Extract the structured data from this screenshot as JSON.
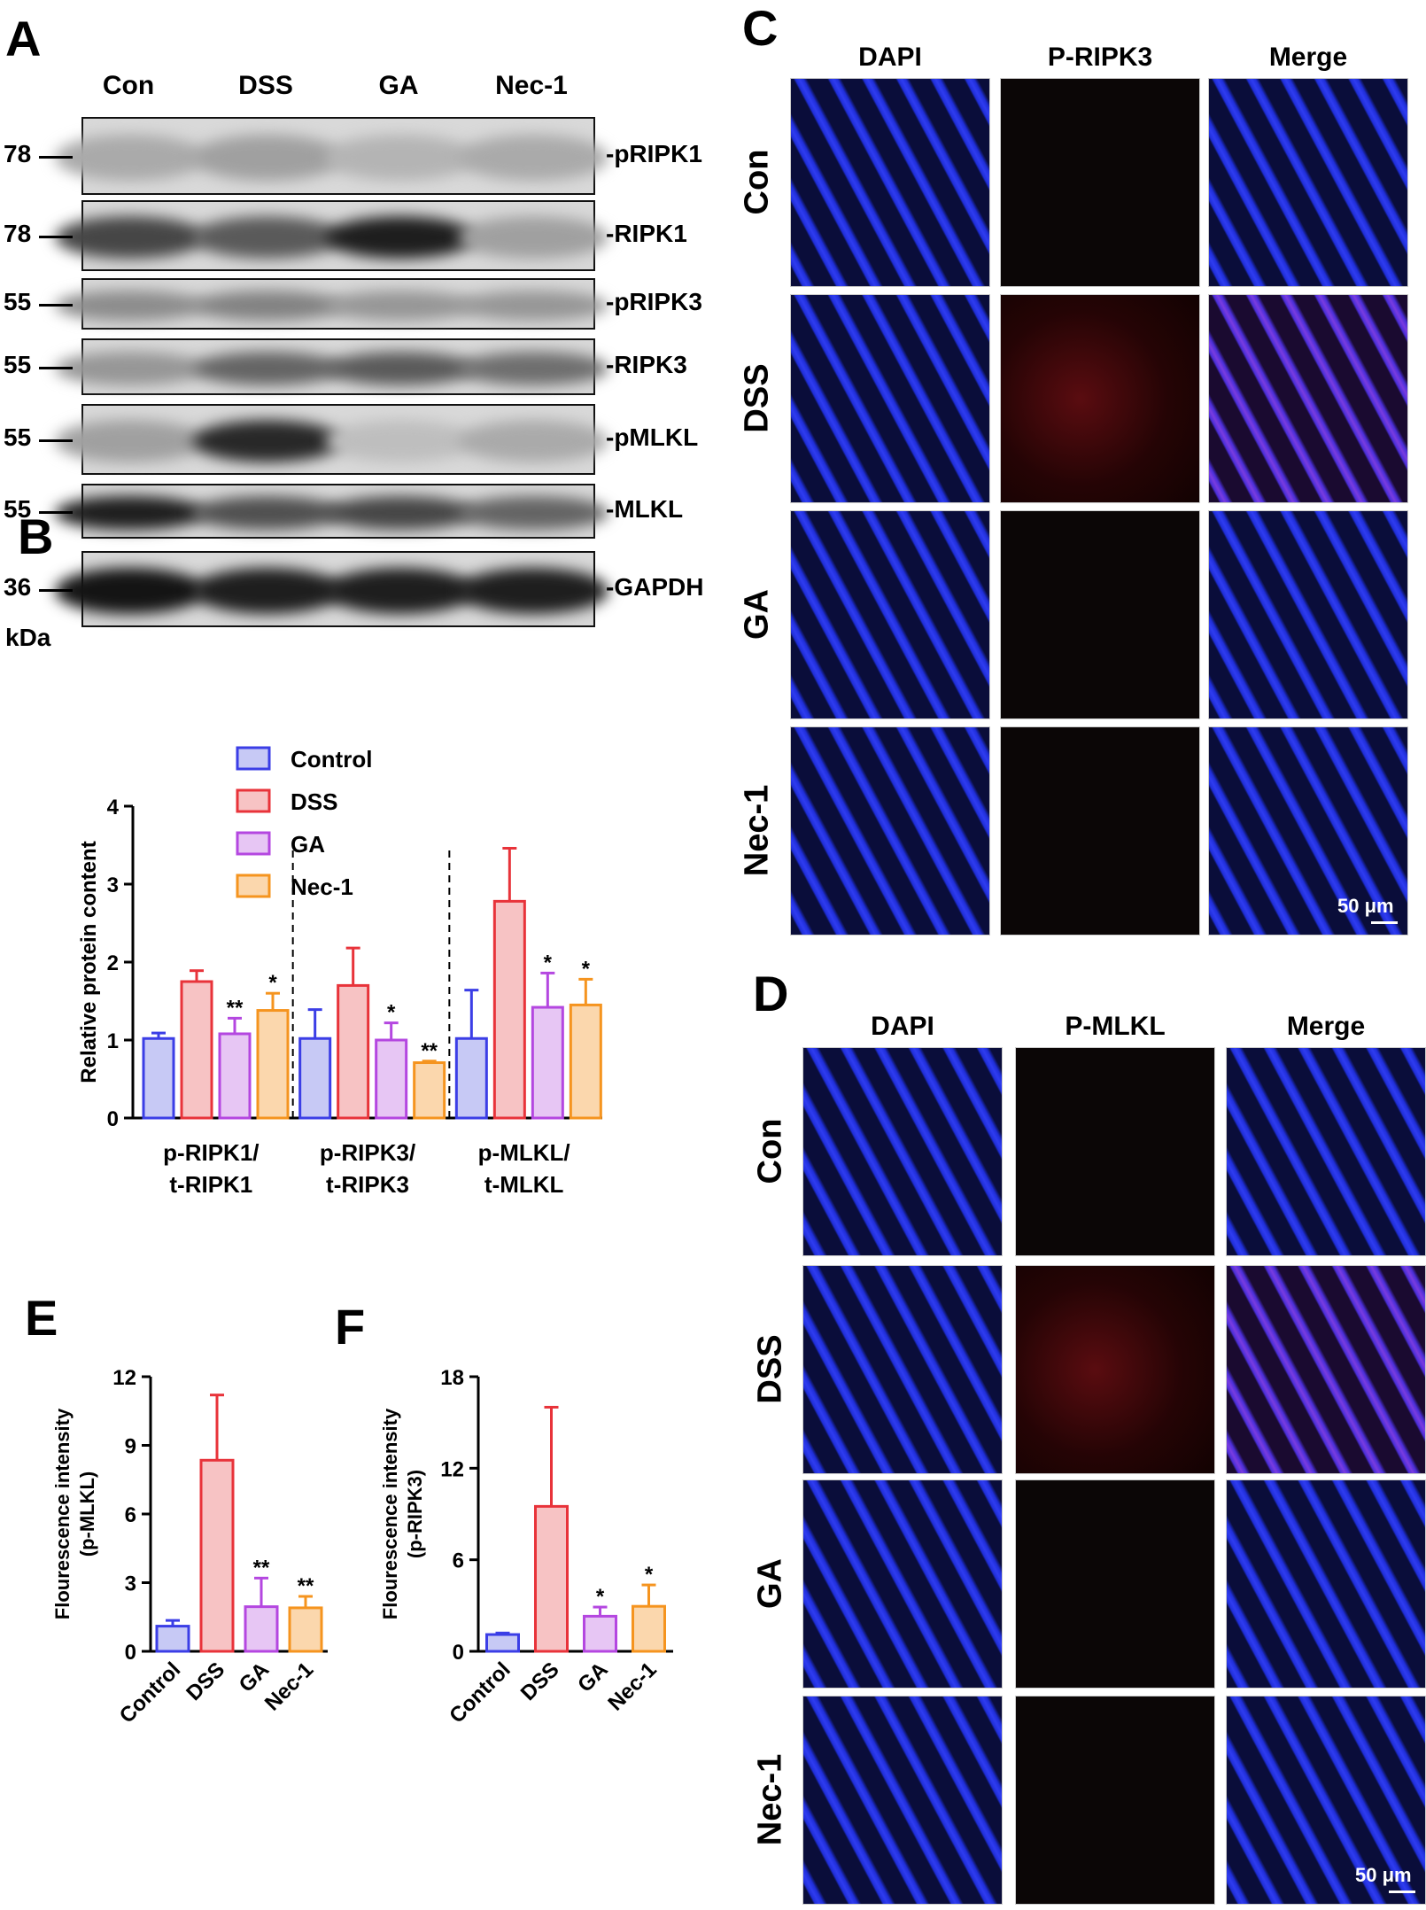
{
  "panels": {
    "A": "A",
    "B": "B",
    "C": "C",
    "D": "D",
    "E": "E",
    "F": "F"
  },
  "blot": {
    "lanes": [
      "Con",
      "DSS",
      "GA",
      "Nec-1"
    ],
    "rows": [
      {
        "marker": "78—",
        "label": "-pRIPK1",
        "bands": [
          0.25,
          0.3,
          0.2,
          0.25
        ]
      },
      {
        "marker": "78—",
        "label": "-RIPK1",
        "bands": [
          0.75,
          0.65,
          0.95,
          0.3
        ]
      },
      {
        "marker": "55—",
        "label": "-pRIPK3",
        "bands": [
          0.4,
          0.45,
          0.35,
          0.35
        ]
      },
      {
        "marker": "55—",
        "label": "-RIPK3",
        "bands": [
          0.35,
          0.6,
          0.65,
          0.55
        ]
      },
      {
        "marker": "55—",
        "label": "-pMLKL",
        "bands": [
          0.3,
          0.9,
          0.15,
          0.25
        ]
      },
      {
        "marker": "55—",
        "label": "-MLKL",
        "bands": [
          0.95,
          0.7,
          0.75,
          0.6
        ]
      },
      {
        "marker": "36—",
        "label": "-GAPDH",
        "bands": [
          1.0,
          0.95,
          0.95,
          0.95
        ]
      }
    ],
    "unit": "kDa"
  },
  "colors": {
    "control": "#3b3ee6",
    "control_fill": "#c7c9f5",
    "dss": "#e8333a",
    "dss_fill": "#f7c3c4",
    "ga": "#b447e0",
    "ga_fill": "#e7c6f4",
    "nec1": "#f5941f",
    "nec1_fill": "#fbd7ad"
  },
  "chart_data": [
    {
      "panel": "B",
      "type": "bar",
      "ylabel": "Relative protein content",
      "ylim": [
        0,
        4
      ],
      "yticks": [
        "0",
        "1",
        "2",
        "3",
        "4"
      ],
      "groups": [
        {
          "label1": "p-RIPK1/",
          "label2": "t-RIPK1"
        },
        {
          "label1": "p-RIPK3/",
          "label2": "t-RIPK3"
        },
        {
          "label1": "p-MLKL/",
          "label2": "t-MLKL"
        }
      ],
      "legend": [
        "Control",
        "DSS",
        "GA",
        "Nec-1"
      ],
      "legend_position": "top",
      "series": [
        {
          "name": "Control",
          "values": [
            1.02,
            1.02,
            1.02
          ],
          "errors": [
            0.07,
            0.37,
            0.62
          ],
          "sig": [
            "",
            "",
            ""
          ]
        },
        {
          "name": "DSS",
          "values": [
            1.75,
            1.7,
            2.78
          ],
          "errors": [
            0.14,
            0.48,
            0.68
          ],
          "sig": [
            "",
            "",
            ""
          ]
        },
        {
          "name": "GA",
          "values": [
            1.08,
            1.0,
            1.42
          ],
          "errors": [
            0.2,
            0.22,
            0.44
          ],
          "sig": [
            "**",
            "*",
            "*"
          ]
        },
        {
          "name": "Nec-1",
          "values": [
            1.38,
            0.71,
            1.45
          ],
          "errors": [
            0.22,
            0.02,
            0.33
          ],
          "sig": [
            "*",
            "**",
            "*"
          ]
        }
      ]
    },
    {
      "panel": "E",
      "type": "bar",
      "ylabel": "Flourescence intensity",
      "ylabel2": "(p-MLKL)",
      "ylim": [
        0,
        12
      ],
      "yticks": [
        "0",
        "3",
        "6",
        "9",
        "12"
      ],
      "categories": [
        "Control",
        "DSS",
        "GA",
        "Nec-1"
      ],
      "values": [
        1.1,
        8.35,
        1.95,
        1.9
      ],
      "errors": [
        0.25,
        2.85,
        1.25,
        0.5
      ],
      "sig": [
        "",
        "",
        "**",
        "**"
      ]
    },
    {
      "panel": "F",
      "type": "bar",
      "ylabel": "Flourescence intensity",
      "ylabel2": "(p-RIPK3)",
      "ylim": [
        0,
        18
      ],
      "yticks": [
        "0",
        "6",
        "12",
        "18"
      ],
      "categories": [
        "Control",
        "DSS",
        "GA",
        "Nec-1"
      ],
      "values": [
        1.1,
        9.5,
        2.3,
        2.95
      ],
      "errors": [
        0.1,
        6.5,
        0.6,
        1.4
      ],
      "sig": [
        "",
        "",
        "*",
        "*"
      ]
    }
  ],
  "microC": {
    "cols": [
      "DAPI",
      "P-RIPK3",
      "Merge"
    ],
    "rows": [
      "Con",
      "DSS",
      "GA",
      "Nec-1"
    ],
    "scalebar": "50 μm"
  },
  "microD": {
    "cols": [
      "DAPI",
      "P-MLKL",
      "Merge"
    ],
    "rows": [
      "Con",
      "DSS",
      "GA",
      "Nec-1"
    ],
    "scalebar": "50 μm"
  }
}
